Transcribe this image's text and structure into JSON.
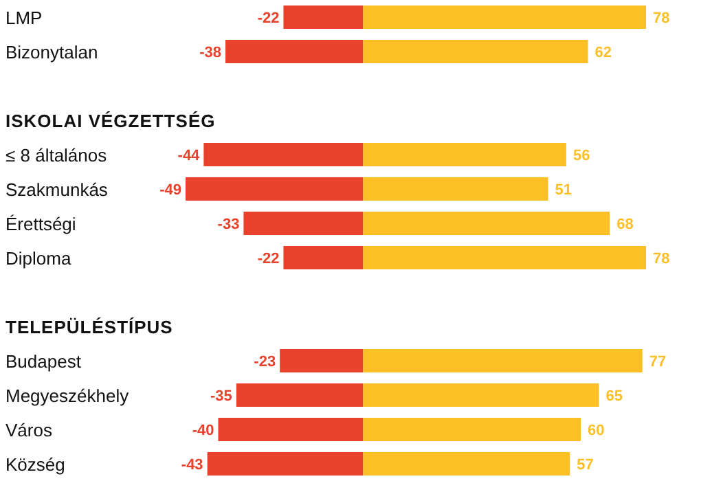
{
  "chart_data": {
    "type": "bar",
    "orientation": "horizontal",
    "stacked": true,
    "data_labels": true,
    "categories": [
      "LMP",
      "Bizonytalan",
      null,
      "ISKOLAI VÉGZETTSÉG",
      "≤ 8 általános",
      "Szakmunkás",
      "Érettségi",
      "Diploma",
      null,
      "TELEPÜLÉSTÍPUS",
      "Budapest",
      "Megyeszékhely",
      "Város",
      "Község"
    ],
    "series": [
      {
        "color": "#e8412c",
        "values": [
          -22,
          -38,
          null,
          null,
          -44,
          -49,
          -33,
          -22,
          null,
          null,
          -23,
          -35,
          -40,
          -43
        ]
      },
      {
        "color": "#fcbf26",
        "values": [
          78,
          62,
          null,
          null,
          56,
          51,
          68,
          78,
          null,
          null,
          77,
          65,
          60,
          57
        ]
      }
    ]
  }
}
